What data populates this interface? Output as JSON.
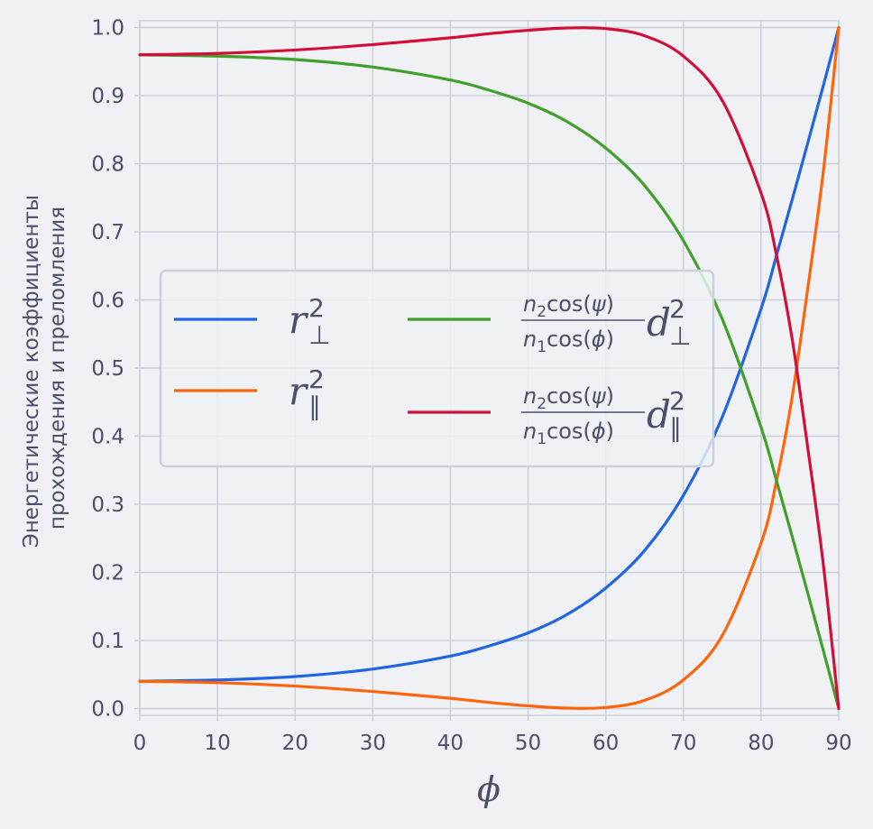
{
  "chart_data": {
    "type": "line",
    "xlabel": "ϕ",
    "ylabel_lines": [
      "Энергетические коэффициенты",
      "прохождения и преломления"
    ],
    "xlim": [
      0,
      90
    ],
    "ylim": [
      -0.01,
      1.01
    ],
    "xticks": [
      0,
      10,
      20,
      30,
      40,
      50,
      60,
      70,
      80,
      90
    ],
    "xtick_labels": [
      "0",
      "10",
      "20",
      "30",
      "40",
      "50",
      "60",
      "70",
      "80",
      "90"
    ],
    "yticks": [
      0.0,
      0.1,
      0.2,
      0.3,
      0.4,
      0.5,
      0.6,
      0.7,
      0.8,
      0.9,
      1.0
    ],
    "ytick_labels": [
      "0.0",
      "0.1",
      "0.2",
      "0.3",
      "0.4",
      "0.5",
      "0.6",
      "0.7",
      "0.8",
      "0.9",
      "1.0"
    ],
    "grid": true,
    "legend_placement": "center-left",
    "x": [
      0,
      10,
      20,
      30,
      40,
      45,
      50,
      55,
      60,
      65,
      70,
      75,
      80,
      82,
      84,
      86,
      88,
      90
    ],
    "series": [
      {
        "id": "r_perp",
        "legend": {
          "sym": "r",
          "sup": "2",
          "sub": "⊥"
        },
        "color": "#2165e3",
        "values": [
          0.04,
          0.042,
          0.047,
          0.058,
          0.077,
          0.092,
          0.111,
          0.138,
          0.177,
          0.232,
          0.313,
          0.428,
          0.587,
          0.666,
          0.747,
          0.83,
          0.914,
          1.0
        ]
      },
      {
        "id": "r_par",
        "legend": {
          "sym": "r",
          "sup": "2",
          "sub": "∥"
        },
        "color": "#fe640b",
        "values": [
          0.04,
          0.038,
          0.033,
          0.025,
          0.015,
          0.009,
          0.004,
          0.0006,
          0.0015,
          0.012,
          0.042,
          0.107,
          0.243,
          0.335,
          0.457,
          0.616,
          0.787,
          1.0
        ]
      },
      {
        "id": "d_perp",
        "legend": {
          "frac_num": [
            "n",
            "2",
            "cos(",
            "ψ",
            ")"
          ],
          "frac_den": [
            "n",
            "1",
            "cos(",
            "ϕ",
            ")"
          ],
          "sym": "d",
          "sup": "2",
          "sub": "⊥"
        },
        "color": "#40a02b",
        "values": [
          0.96,
          0.958,
          0.953,
          0.942,
          0.923,
          0.908,
          0.889,
          0.862,
          0.823,
          0.768,
          0.687,
          0.572,
          0.413,
          0.334,
          0.253,
          0.17,
          0.086,
          0.0
        ]
      },
      {
        "id": "d_par",
        "legend": {
          "frac_num": [
            "n",
            "2",
            "cos(",
            "ψ",
            ")"
          ],
          "frac_den": [
            "n",
            "1",
            "cos(",
            "ϕ",
            ")"
          ],
          "sym": "d",
          "sup": "2",
          "sub": "∥"
        },
        "color": "#d20f39",
        "values": [
          0.96,
          0.962,
          0.967,
          0.975,
          0.985,
          0.991,
          0.996,
          0.9994,
          0.9985,
          0.988,
          0.958,
          0.893,
          0.757,
          0.665,
          0.543,
          0.384,
          0.213,
          0.0
        ]
      }
    ]
  }
}
